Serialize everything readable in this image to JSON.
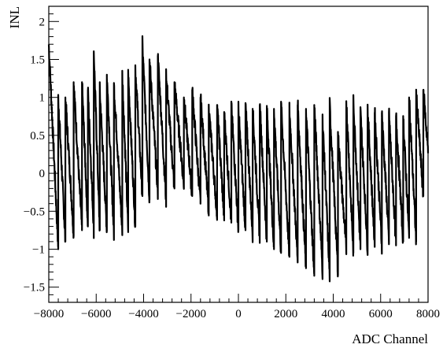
{
  "chart_data": {
    "type": "line",
    "title": "",
    "xlabel": "ADC Channel",
    "ylabel": "INL",
    "xlim": [
      -8000,
      8000
    ],
    "ylim": [
      -1.7,
      2.2
    ],
    "x_ticks": [
      -8000,
      -6000,
      -4000,
      -2000,
      0,
      2000,
      4000,
      6000,
      8000
    ],
    "x_tick_labels": [
      "−8000",
      "−6000",
      "−4000",
      "−2000",
      "0",
      "2000",
      "4000",
      "6000",
      "8000"
    ],
    "y_ticks": [
      -1.5,
      -1,
      -0.5,
      0,
      0.5,
      1,
      1.5,
      2
    ],
    "y_tick_labels": [
      "−1.5",
      "−1",
      "−0.5",
      "0",
      "0.5",
      "1",
      "1.5",
      "2"
    ],
    "grid": false,
    "legend": "none",
    "series_color": "#000000",
    "x": [
      -8000,
      -7600,
      -7600,
      -7300,
      -7300,
      -6950,
      -6950,
      -6600,
      -6600,
      -6350,
      -6350,
      -6100,
      -6100,
      -5850,
      -5850,
      -5550,
      -5550,
      -5250,
      -5250,
      -4900,
      -4900,
      -4650,
      -4650,
      -4350,
      -4350,
      -4050,
      -4050,
      -3750,
      -3750,
      -3400,
      -3400,
      -3050,
      -3050,
      -2700,
      -2700,
      -2300,
      -2300,
      -1950,
      -1950,
      -1600,
      -1600,
      -1250,
      -1250,
      -900,
      -900,
      -600,
      -600,
      -300,
      -300,
      0,
      0,
      300,
      300,
      600,
      600,
      900,
      900,
      1200,
      1200,
      1500,
      1500,
      1800,
      1800,
      2150,
      2150,
      2500,
      2500,
      2850,
      2850,
      3200,
      3200,
      3550,
      3550,
      3850,
      3850,
      4200,
      4200,
      4550,
      4550,
      4850,
      4850,
      5150,
      5150,
      5450,
      5450,
      5750,
      5750,
      6050,
      6050,
      6350,
      6350,
      6650,
      6650,
      6950,
      6950,
      7200,
      7200,
      7500,
      7500,
      7800,
      7800,
      8000
    ],
    "y": [
      1.7,
      -1.0,
      1.0,
      -0.9,
      1.0,
      -0.8,
      1.2,
      -0.75,
      1.2,
      -0.7,
      1.1,
      -0.75,
      1.6,
      -0.75,
      1.1,
      -0.75,
      1.3,
      -0.8,
      1.15,
      -0.75,
      1.3,
      -0.75,
      1.3,
      -0.7,
      1.4,
      -0.3,
      1.7,
      -0.35,
      1.5,
      -0.25,
      1.55,
      -0.35,
      1.3,
      -0.2,
      1.2,
      -0.15,
      1.0,
      -0.3,
      1.1,
      -0.4,
      1.0,
      -0.5,
      0.85,
      -0.55,
      0.9,
      -0.6,
      0.8,
      -0.65,
      0.9,
      -0.75,
      0.85,
      -0.75,
      0.9,
      -0.8,
      0.85,
      -0.85,
      0.9,
      -0.9,
      0.85,
      -1.0,
      0.85,
      -1.05,
      0.9,
      -1.1,
      0.85,
      -1.15,
      0.9,
      -1.25,
      0.85,
      -1.35,
      0.9,
      -1.3,
      0.7,
      -1.35,
      0.9,
      -1.3,
      0.5,
      -1.0,
      0.95,
      -1.05,
      0.95,
      -1.0,
      0.8,
      -1.0,
      0.85,
      -0.95,
      0.8,
      -0.95,
      0.8,
      -0.9,
      0.8,
      -0.95,
      0.75,
      -0.9,
      0.75,
      -0.85,
      1.0,
      -0.9,
      1.05,
      -0.3,
      1.1,
      0.3
    ]
  }
}
